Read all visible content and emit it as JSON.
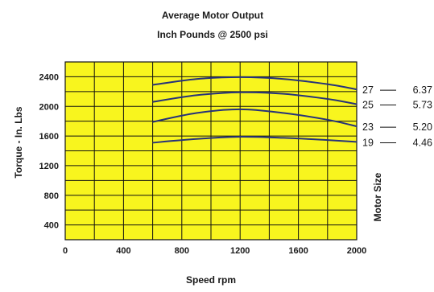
{
  "chart_data": {
    "type": "line",
    "title": "Average Motor Output",
    "subtitle": "Inch Pounds @ 2500 psi",
    "xlabel": "Speed rpm",
    "ylabel": "Torque - In. Lbs",
    "right_axis_label": "Motor Size",
    "xlim": [
      0,
      2000
    ],
    "ylim": [
      200,
      2600
    ],
    "x_ticks": [
      "0",
      "400",
      "800",
      "1200",
      "1600",
      "2000"
    ],
    "y_ticks": [
      "400",
      "800",
      "1200",
      "1600",
      "2000",
      "2400"
    ],
    "grid": true,
    "background_color": "#f8f51e",
    "line_color": "#26327a",
    "series": [
      {
        "name": "27",
        "displacement": "6.37",
        "x": [
          600,
          900,
          1200,
          1500,
          1800,
          2000
        ],
        "values": [
          2290,
          2370,
          2395,
          2370,
          2300,
          2230
        ]
      },
      {
        "name": "25",
        "displacement": "5.73",
        "x": [
          600,
          900,
          1200,
          1500,
          1800,
          2000
        ],
        "values": [
          2060,
          2150,
          2190,
          2170,
          2100,
          2030
        ]
      },
      {
        "name": "23",
        "displacement": "5.20",
        "x": [
          600,
          900,
          1200,
          1500,
          1800,
          2000
        ],
        "values": [
          1790,
          1910,
          1960,
          1910,
          1820,
          1730
        ]
      },
      {
        "name": "19",
        "displacement": "4.46",
        "x": [
          600,
          900,
          1200,
          1500,
          1800,
          2000
        ],
        "values": [
          1510,
          1560,
          1590,
          1575,
          1545,
          1520
        ]
      }
    ]
  }
}
